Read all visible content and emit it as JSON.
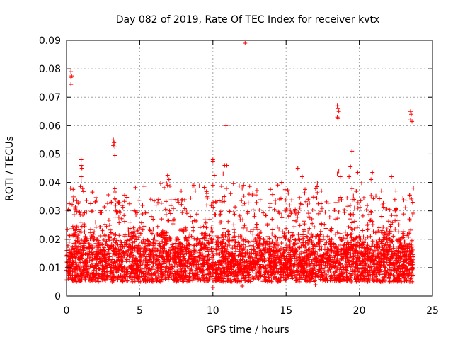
{
  "chart_data": {
    "type": "scatter",
    "title": "Day 082 of 2019, Rate Of TEC Index for receiver kvtx",
    "xlabel": "GPS time / hours",
    "ylabel": "ROTI / TECUs",
    "xlim": [
      0,
      25
    ],
    "ylim": [
      0,
      0.09
    ],
    "x_ticks": [
      "0",
      "5",
      "10",
      "15",
      "20",
      "25"
    ],
    "y_ticks": [
      "0",
      "0.01",
      "0.02",
      "0.03",
      "0.04",
      "0.05",
      "0.06",
      "0.07",
      "0.08",
      "0.09"
    ],
    "grid": true,
    "marker": "+",
    "color": "#ff0000",
    "x_data_range": [
      0,
      23.7
    ],
    "typical_band": [
      0.005,
      0.025
    ],
    "series": [
      {
        "name": "ROTI",
        "points": [
          [
            0.3,
            0.079
          ],
          [
            0.3,
            0.077
          ],
          [
            0.35,
            0.0775
          ],
          [
            0.3,
            0.0745
          ],
          [
            1.0,
            0.048
          ],
          [
            1.0,
            0.046
          ],
          [
            1.05,
            0.045
          ],
          [
            1.0,
            0.042
          ],
          [
            1.0,
            0.0405
          ],
          [
            3.2,
            0.055
          ],
          [
            3.25,
            0.054
          ],
          [
            3.2,
            0.053
          ],
          [
            3.3,
            0.0525
          ],
          [
            3.3,
            0.0495
          ],
          [
            6.9,
            0.0425
          ],
          [
            7.0,
            0.041
          ],
          [
            6.9,
            0.039
          ],
          [
            8.7,
            0.039
          ],
          [
            8.8,
            0.037
          ],
          [
            10.0,
            0.048
          ],
          [
            10.0,
            0.0475
          ],
          [
            10.1,
            0.0425
          ],
          [
            10.0,
            0.039
          ],
          [
            10.8,
            0.046
          ],
          [
            10.95,
            0.046
          ],
          [
            10.9,
            0.06
          ],
          [
            10.7,
            0.043
          ],
          [
            12.2,
            0.089
          ],
          [
            12.1,
            0.039
          ],
          [
            12.0,
            0.038
          ],
          [
            14.7,
            0.04
          ],
          [
            15.8,
            0.045
          ],
          [
            16.1,
            0.042
          ],
          [
            18.5,
            0.067
          ],
          [
            18.55,
            0.066
          ],
          [
            18.6,
            0.065
          ],
          [
            18.5,
            0.063
          ],
          [
            18.55,
            0.0625
          ],
          [
            18.6,
            0.044
          ],
          [
            18.5,
            0.043
          ],
          [
            18.7,
            0.042
          ],
          [
            19.5,
            0.051
          ],
          [
            19.4,
            0.0455
          ],
          [
            19.3,
            0.042
          ],
          [
            19.9,
            0.0435
          ],
          [
            20.9,
            0.0435
          ],
          [
            20.8,
            0.041
          ],
          [
            22.2,
            0.042
          ],
          [
            22.5,
            0.037
          ],
          [
            23.5,
            0.065
          ],
          [
            23.55,
            0.064
          ],
          [
            23.5,
            0.062
          ],
          [
            23.6,
            0.0615
          ],
          [
            23.7,
            0.038
          ],
          [
            10.0,
            0.003
          ],
          [
            12.0,
            0.0035
          ],
          [
            17.0,
            0.004
          ]
        ]
      }
    ]
  }
}
